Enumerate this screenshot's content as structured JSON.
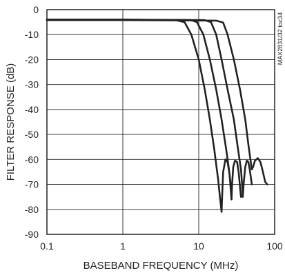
{
  "chart_data": {
    "type": "line",
    "xlabel": "BASEBAND FREQUENCY (MHz)",
    "ylabel": "FILTER RESPONSE (dB)",
    "side_label": "MAX2831/32 toc34",
    "x_scale": "log",
    "xlim": [
      0.1,
      100
    ],
    "ylim": [
      -90,
      0
    ],
    "grid": true,
    "xticks": [
      {
        "value": 0.1,
        "label": "0.1"
      },
      {
        "value": 1,
        "label": "1"
      },
      {
        "value": 10,
        "label": "10"
      },
      {
        "value": 100,
        "label": "100"
      }
    ],
    "yticks": [
      {
        "value": 0,
        "label": "0"
      },
      {
        "value": -10,
        "label": "-10"
      },
      {
        "value": -20,
        "label": "-20"
      },
      {
        "value": -30,
        "label": "-30"
      },
      {
        "value": -40,
        "label": "-40"
      },
      {
        "value": -50,
        "label": "-50"
      },
      {
        "value": -60,
        "label": "-60"
      },
      {
        "value": -70,
        "label": "-70"
      },
      {
        "value": -80,
        "label": "-80"
      },
      {
        "value": -90,
        "label": "-90"
      }
    ],
    "line_color": "#222222",
    "series": [
      {
        "points": [
          [
            0.1,
            -4
          ],
          [
            1,
            -4
          ],
          [
            5,
            -4.2
          ],
          [
            6.5,
            -5
          ],
          [
            8,
            -10
          ],
          [
            10,
            -20
          ],
          [
            12,
            -32
          ],
          [
            14,
            -44
          ],
          [
            16,
            -56
          ],
          [
            18,
            -68
          ],
          [
            19,
            -75
          ],
          [
            20,
            -81
          ],
          [
            20.5,
            -72
          ],
          [
            21,
            -65
          ],
          [
            22.5,
            -60
          ],
          [
            24,
            -61
          ],
          [
            25.5,
            -66
          ],
          [
            26.5,
            -73
          ],
          [
            27,
            -76
          ]
        ]
      },
      {
        "points": [
          [
            0.1,
            -4
          ],
          [
            1,
            -4
          ],
          [
            8,
            -4.2
          ],
          [
            9.5,
            -5
          ],
          [
            11.5,
            -10
          ],
          [
            14,
            -20
          ],
          [
            17,
            -32
          ],
          [
            20,
            -44
          ],
          [
            23,
            -56
          ],
          [
            25,
            -64
          ],
          [
            26.5,
            -71
          ],
          [
            27,
            -76
          ],
          [
            27.5,
            -70
          ],
          [
            28.5,
            -63
          ],
          [
            30,
            -60.5
          ],
          [
            32,
            -61
          ],
          [
            33.5,
            -65
          ],
          [
            35,
            -71
          ],
          [
            36,
            -75
          ]
        ]
      },
      {
        "points": [
          [
            0.1,
            -4
          ],
          [
            1,
            -4
          ],
          [
            12,
            -4.2
          ],
          [
            14.5,
            -5
          ],
          [
            17,
            -10
          ],
          [
            20,
            -20
          ],
          [
            24,
            -32
          ],
          [
            29,
            -44
          ],
          [
            33,
            -56
          ],
          [
            36,
            -64
          ],
          [
            37.5,
            -71
          ],
          [
            38,
            -75
          ],
          [
            39,
            -70
          ],
          [
            41,
            -63
          ],
          [
            43,
            -60.5
          ],
          [
            45,
            -61
          ],
          [
            47,
            -64
          ],
          [
            49,
            -68
          ],
          [
            50,
            -70
          ]
        ]
      },
      {
        "points": [
          [
            0.1,
            -4.2
          ],
          [
            1,
            -4.2
          ],
          [
            17,
            -4.4
          ],
          [
            21,
            -5.2
          ],
          [
            24,
            -10
          ],
          [
            29,
            -20
          ],
          [
            35,
            -32
          ],
          [
            41,
            -44
          ],
          [
            45,
            -54
          ],
          [
            48,
            -60
          ],
          [
            50,
            -64
          ],
          [
            52,
            -63
          ],
          [
            55,
            -60.5
          ],
          [
            60,
            -59.5
          ],
          [
            65,
            -61
          ],
          [
            70,
            -65
          ],
          [
            75,
            -69
          ],
          [
            80,
            -70
          ]
        ]
      }
    ]
  }
}
